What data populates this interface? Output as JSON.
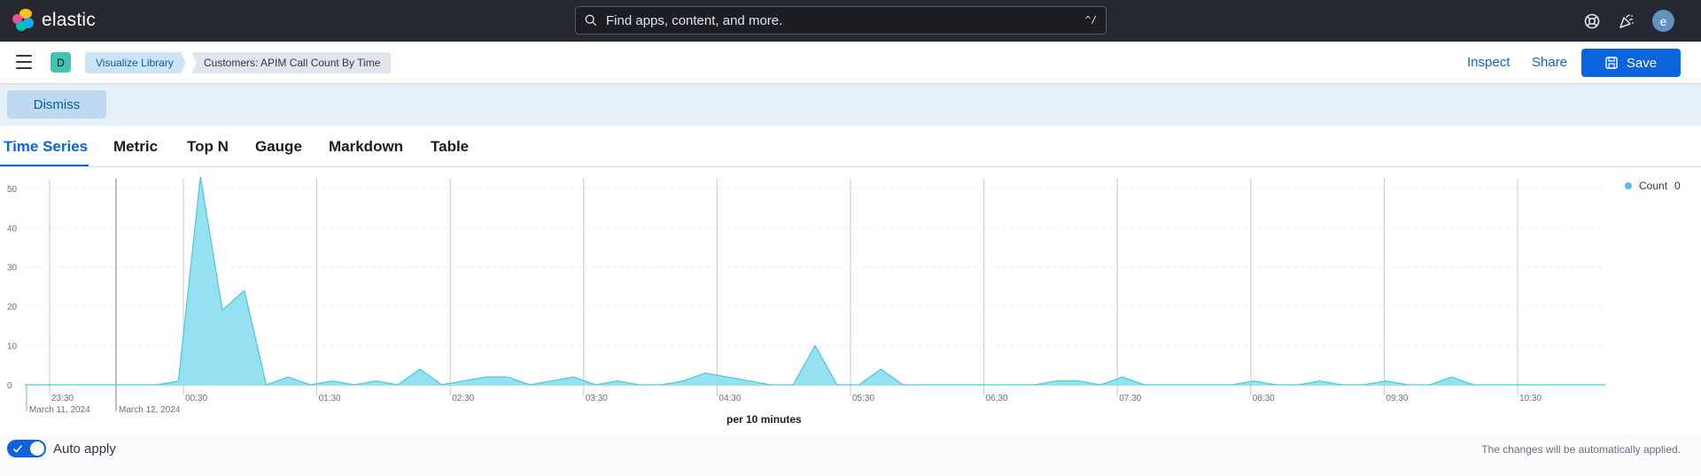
{
  "header": {
    "logo_text": "elastic",
    "search_placeholder": "Find apps, content, and more.",
    "search_shortcut": "^/",
    "avatar_initial": "e"
  },
  "subheader": {
    "space_initial": "D",
    "breadcrumbs": [
      "Visualize Library",
      "Customers: APIM Call Count By Time"
    ],
    "inspect_label": "Inspect",
    "share_label": "Share",
    "save_label": "Save"
  },
  "callout": {
    "dismiss_label": "Dismiss"
  },
  "tabs": [
    "Time Series",
    "Metric",
    "Top N",
    "Gauge",
    "Markdown",
    "Table"
  ],
  "active_tab": "Time Series",
  "chart_data": {
    "type": "area",
    "xlabel": "per 10 minutes",
    "ylabel": "",
    "ylim": [
      0,
      52
    ],
    "yticks": [
      0,
      10,
      20,
      30,
      40,
      50
    ],
    "x_tick_labels": [
      "23:30",
      "00:30",
      "01:30",
      "02:30",
      "03:30",
      "04:30",
      "05:30",
      "06:30",
      "07:30",
      "08:30",
      "09:30",
      "10:30"
    ],
    "date_labels": [
      "March 11, 2024",
      "March 12, 2024"
    ],
    "legend": {
      "position": "top-right",
      "entries": [
        {
          "name": "Count",
          "value": "0"
        }
      ]
    },
    "series": [
      {
        "name": "Count",
        "color": "#4bc5e0",
        "values": [
          0,
          0,
          0,
          0,
          0,
          0,
          0,
          1,
          53,
          19,
          24,
          0,
          2,
          0,
          1,
          0,
          1,
          0,
          4,
          0,
          1,
          2,
          2,
          0,
          1,
          2,
          0,
          1,
          0,
          0,
          1,
          3,
          2,
          1,
          0,
          0,
          10,
          0,
          0,
          4,
          0,
          0,
          0,
          0,
          0,
          0,
          0,
          1,
          1,
          0,
          2,
          0,
          0,
          0,
          0,
          0,
          1,
          0,
          0,
          1,
          0,
          0,
          1,
          0,
          0,
          2,
          0,
          0,
          0,
          0,
          0,
          0,
          0
        ]
      }
    ]
  },
  "footer": {
    "auto_apply_label": "Auto apply",
    "auto_apply_enabled": true,
    "note": "The changes will be automatically applied."
  }
}
